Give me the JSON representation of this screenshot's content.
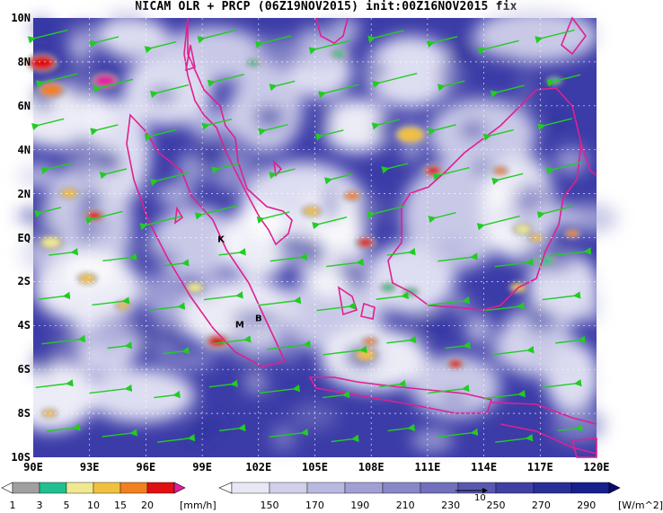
{
  "title": "NICAM OLR + PRCP (06Z19NOV2015) init:00Z16NOV2015 fix",
  "lat_labels": [
    "10N",
    "8N",
    "6N",
    "4N",
    "2N",
    "EQ",
    "2S",
    "4S",
    "6S",
    "8S",
    "10S"
  ],
  "lon_labels": [
    "90E",
    "93E",
    "96E",
    "99E",
    "102E",
    "105E",
    "108E",
    "111E",
    "114E",
    "117E",
    "120E"
  ],
  "stations": [
    {
      "label": "K",
      "lon": 100.0,
      "lat": -0.2
    },
    {
      "label": "M",
      "lon": 101.0,
      "lat": -4.1
    },
    {
      "label": "B",
      "lon": 102.0,
      "lat": -3.8
    }
  ],
  "prcp_scale": {
    "labels": [
      "1",
      "3",
      "5",
      "10",
      "15",
      "20"
    ],
    "colors": [
      "#ffffff",
      "#a0a0a0",
      "#20c090",
      "#f0e890",
      "#f0c040",
      "#f08020",
      "#e01010",
      "#e020a0"
    ],
    "unit": "[mm/h]"
  },
  "olr_scale": {
    "labels": [
      "150",
      "170",
      "190",
      "210",
      "230",
      "250",
      "270",
      "290"
    ],
    "colors": [
      "#ffffff",
      "#e8e8f4",
      "#d0d0ea",
      "#b8b8e0",
      "#a0a0d4",
      "#8888c8",
      "#7070bc",
      "#5858b0",
      "#4040a4",
      "#283098",
      "#18208c",
      "#0a0a70"
    ],
    "unit": "[W/m^2]",
    "vector_ref": "10"
  },
  "colors": {
    "coast": "#e0208f",
    "wind": "#22cc22",
    "grid": "#ffffff"
  }
}
